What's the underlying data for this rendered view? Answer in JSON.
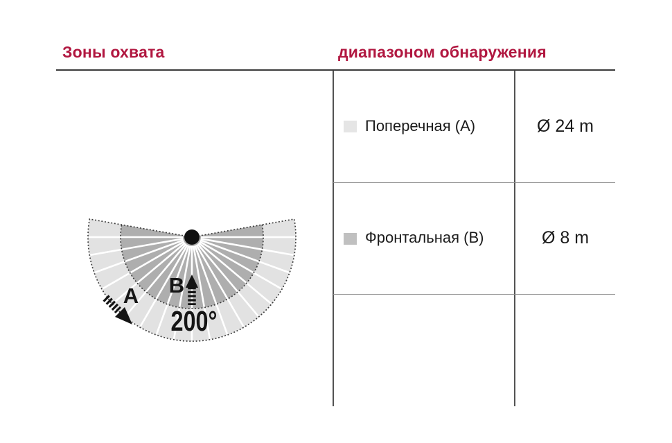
{
  "header": {
    "left_title": "Зоны охвата",
    "right_title": "диапазоном обнаружения",
    "accent_color": "#b11740"
  },
  "table": {
    "rows": [
      {
        "swatch_color": "#e5e5e5",
        "label": "Поперечная (A)",
        "value": "Ø 24 m"
      },
      {
        "swatch_color": "#c0c0c0",
        "label": "Фронтальная (B)",
        "value": "Ø 8 m"
      }
    ]
  },
  "diagram": {
    "sweep_degrees": 200,
    "angle_label": "200°",
    "label_a": "A",
    "label_b": "B",
    "outer_zone_color": "#e2e2e2",
    "inner_zone_color": "#aeaeae"
  }
}
